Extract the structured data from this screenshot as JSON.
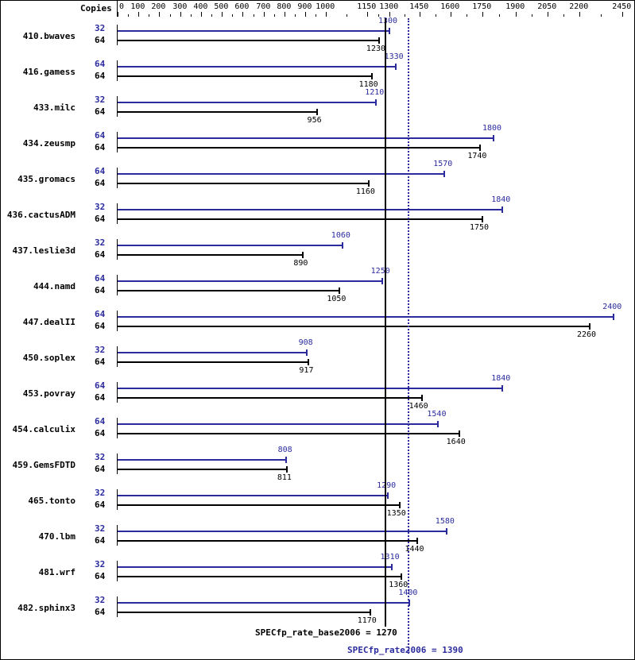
{
  "chart_data": {
    "type": "bar",
    "orientation": "horizontal",
    "title": "",
    "axis_header": "Copies",
    "xlabel": "",
    "ylabel": "",
    "xticks": [
      0,
      100,
      200,
      300,
      400,
      500,
      600,
      700,
      800,
      900,
      1000,
      1150,
      1300,
      1450,
      1600,
      1750,
      1900,
      2050,
      2200,
      2450
    ],
    "xlim": [
      0,
      2450
    ],
    "legend": [
      {
        "name": "peak",
        "color": "#2b2b9e"
      },
      {
        "name": "base",
        "color": "#000000"
      }
    ],
    "categories": [
      "410.bwaves",
      "416.gamess",
      "433.milc",
      "434.zeusmp",
      "435.gromacs",
      "436.cactusADM",
      "437.leslie3d",
      "444.namd",
      "447.dealII",
      "450.soplex",
      "453.povray",
      "454.calculix",
      "459.GemsFDTD",
      "465.tonto",
      "470.lbm",
      "481.wrf",
      "482.sphinx3"
    ],
    "series": [
      {
        "name": "peak",
        "copies": [
          32,
          64,
          32,
          64,
          64,
          32,
          32,
          64,
          64,
          32,
          64,
          64,
          32,
          32,
          32,
          32,
          32
        ],
        "values": [
          1300,
          1330,
          1210,
          1800,
          1570,
          1840,
          1060,
          1250,
          2400,
          908,
          1840,
          1540,
          808,
          1290,
          1580,
          1310,
          1400
        ]
      },
      {
        "name": "base",
        "copies": [
          64,
          64,
          64,
          64,
          64,
          64,
          64,
          64,
          64,
          64,
          64,
          64,
          64,
          64,
          64,
          64,
          64
        ],
        "values": [
          1230,
          1180,
          956,
          1740,
          1160,
          1750,
          890,
          1050,
          2260,
          917,
          1460,
          1640,
          811,
          1350,
          1440,
          1360,
          1170
        ]
      }
    ],
    "reference_lines": [
      {
        "name": "SPECfp_rate_base2006",
        "value": 1270,
        "style": "solid",
        "color": "#000000"
      },
      {
        "name": "SPECfp_rate2006",
        "value": 1390,
        "style": "dotted",
        "color": "#2b2b9e"
      }
    ]
  },
  "footer": {
    "base_label": "SPECfp_rate_base2006 = 1270",
    "peak_label": "SPECfp_rate2006 = 1390"
  }
}
